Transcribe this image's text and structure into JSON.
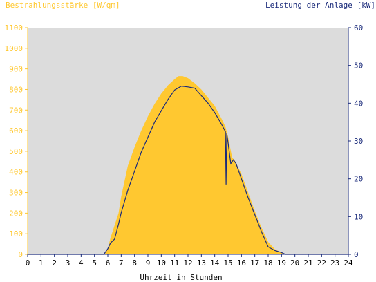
{
  "chart_data": {
    "type": "area",
    "title_left": "Bestrahlungsstärke [W/qm]",
    "title_right": "Leistung der Anlage [kW]",
    "xlabel": "Uhrzeit in Stunden",
    "xlim": [
      0,
      24
    ],
    "x_ticks": [
      "0",
      "1",
      "2",
      "3",
      "4",
      "5",
      "6",
      "7",
      "8",
      "9",
      "10",
      "11",
      "12",
      "13",
      "14",
      "15",
      "16",
      "17",
      "18",
      "19",
      "20",
      "21",
      "22",
      "23",
      "24"
    ],
    "ylim_left": [
      0,
      1100
    ],
    "y_ticks_left": [
      "0",
      "100",
      "200",
      "300",
      "400",
      "500",
      "600",
      "700",
      "800",
      "900",
      "1000",
      "1100"
    ],
    "ylim_right": [
      0,
      60
    ],
    "y_ticks_right": [
      "0",
      "10",
      "20",
      "30",
      "40",
      "50",
      "60"
    ],
    "grid": false,
    "colors": {
      "plot_background": "#dcdcdc",
      "irradiance_fill": "#ffc830",
      "power_line": "#1a2a7a",
      "left_axis_text": "#ffc830",
      "right_axis_text": "#1a2a7a"
    },
    "series": [
      {
        "axis": "left",
        "style": "area",
        "points": [
          [
            0,
            0
          ],
          [
            5.5,
            0
          ],
          [
            5.8,
            5
          ],
          [
            6.0,
            30
          ],
          [
            6.2,
            80
          ],
          [
            6.5,
            140
          ],
          [
            6.8,
            200
          ],
          [
            7.0,
            280
          ],
          [
            7.3,
            370
          ],
          [
            7.5,
            430
          ],
          [
            8.0,
            520
          ],
          [
            8.5,
            600
          ],
          [
            9.0,
            670
          ],
          [
            9.5,
            730
          ],
          [
            10.0,
            780
          ],
          [
            10.5,
            820
          ],
          [
            11.0,
            850
          ],
          [
            11.3,
            865
          ],
          [
            11.6,
            865
          ],
          [
            12.0,
            855
          ],
          [
            12.5,
            830
          ],
          [
            13.0,
            800
          ],
          [
            13.5,
            760
          ],
          [
            14.0,
            720
          ],
          [
            14.5,
            660
          ],
          [
            14.8,
            620
          ],
          [
            15.0,
            570
          ],
          [
            15.3,
            470
          ],
          [
            15.5,
            455
          ],
          [
            16.0,
            390
          ],
          [
            16.5,
            300
          ],
          [
            17.0,
            210
          ],
          [
            17.5,
            130
          ],
          [
            18.0,
            60
          ],
          [
            18.5,
            25
          ],
          [
            19.0,
            8
          ],
          [
            19.3,
            0
          ],
          [
            24,
            0
          ]
        ]
      },
      {
        "axis": "right",
        "style": "line",
        "points": [
          [
            0,
            0
          ],
          [
            5.7,
            0
          ],
          [
            6.0,
            1.5
          ],
          [
            6.2,
            3
          ],
          [
            6.5,
            4
          ],
          [
            6.8,
            8
          ],
          [
            7.0,
            11
          ],
          [
            7.5,
            17
          ],
          [
            8.0,
            22
          ],
          [
            8.5,
            27
          ],
          [
            9.0,
            31
          ],
          [
            9.5,
            35
          ],
          [
            10.0,
            38
          ],
          [
            10.5,
            41
          ],
          [
            11.0,
            43.5
          ],
          [
            11.5,
            44.5
          ],
          [
            12.0,
            44.3
          ],
          [
            12.5,
            44
          ],
          [
            13.0,
            42
          ],
          [
            13.5,
            40
          ],
          [
            14.0,
            37.5
          ],
          [
            14.5,
            34.5
          ],
          [
            14.8,
            32.5
          ],
          [
            14.85,
            18.5
          ],
          [
            14.9,
            32
          ],
          [
            15.0,
            29.5
          ],
          [
            15.2,
            24
          ],
          [
            15.4,
            25
          ],
          [
            15.6,
            24
          ],
          [
            16.0,
            20
          ],
          [
            16.5,
            15
          ],
          [
            17.0,
            10.5
          ],
          [
            17.5,
            6
          ],
          [
            18.0,
            2
          ],
          [
            18.5,
            1
          ],
          [
            19.0,
            0.5
          ],
          [
            19.3,
            0
          ],
          [
            24,
            0
          ]
        ]
      }
    ]
  }
}
